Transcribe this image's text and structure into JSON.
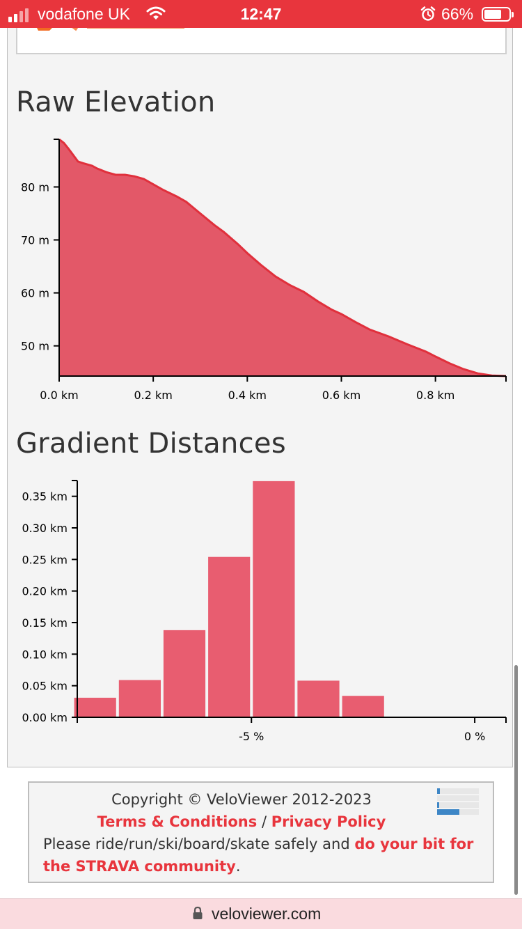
{
  "status_bar": {
    "carrier": "vodafone UK",
    "time": "12:47",
    "battery_percent": "66%",
    "battery_level": 0.66
  },
  "elevation": {
    "title": "Raw Elevation"
  },
  "gradient": {
    "title": "Gradient Distances"
  },
  "chart_data": [
    {
      "type": "area",
      "title": "Raw Elevation",
      "color": "#e35868",
      "line_color": "#e0303c",
      "x_unit": "km",
      "y_unit": "m",
      "xlim": [
        0,
        0.95
      ],
      "ylim": [
        44.3,
        89
      ],
      "x_ticks": [
        0.0,
        0.2,
        0.4,
        0.6,
        0.8
      ],
      "x_tick_labels": [
        "0.0 km",
        "0.2 km",
        "0.4 km",
        "0.6 km",
        "0.8 km"
      ],
      "y_ticks": [
        50,
        60,
        70,
        80
      ],
      "y_tick_labels": [
        "50 m",
        "60 m",
        "70 m",
        "80 m"
      ],
      "x": [
        0.0,
        0.01,
        0.02,
        0.03,
        0.04,
        0.05,
        0.07,
        0.08,
        0.1,
        0.12,
        0.14,
        0.16,
        0.18,
        0.2,
        0.22,
        0.25,
        0.27,
        0.3,
        0.33,
        0.35,
        0.38,
        0.4,
        0.43,
        0.46,
        0.49,
        0.52,
        0.55,
        0.58,
        0.6,
        0.63,
        0.66,
        0.7,
        0.74,
        0.78,
        0.8,
        0.83,
        0.86,
        0.89,
        0.92,
        0.95
      ],
      "y": [
        89.0,
        88.3,
        87.2,
        86.0,
        84.8,
        84.5,
        84.0,
        83.5,
        82.8,
        82.3,
        82.3,
        82.0,
        81.5,
        80.5,
        79.5,
        78.2,
        77.2,
        75.0,
        72.8,
        71.5,
        69.2,
        67.5,
        65.2,
        63.1,
        61.5,
        60.2,
        58.4,
        56.8,
        56.0,
        54.5,
        53.1,
        51.8,
        50.3,
        48.9,
        48.0,
        46.7,
        45.6,
        44.8,
        44.4,
        44.3
      ]
    },
    {
      "type": "bar",
      "title": "Gradient Distances",
      "color": "#e85d70",
      "x_unit": "%",
      "y_unit": "km",
      "xlim": [
        -8.9,
        0.7
      ],
      "ylim": [
        0,
        0.375
      ],
      "x_ticks": [
        -5,
        0
      ],
      "x_tick_labels": [
        "-5 %",
        "0 %"
      ],
      "y_ticks": [
        0.0,
        0.05,
        0.1,
        0.15,
        0.2,
        0.25,
        0.3,
        0.35
      ],
      "y_tick_labels": [
        "0.00 km",
        "0.05 km",
        "0.10 km",
        "0.15 km",
        "0.20 km",
        "0.25 km",
        "0.30 km",
        "0.35 km"
      ],
      "bin_width": 1,
      "bins": [
        {
          "from": -9,
          "to": -8,
          "value": 0.031
        },
        {
          "from": -8,
          "to": -7,
          "value": 0.059
        },
        {
          "from": -7,
          "to": -6,
          "value": 0.138
        },
        {
          "from": -6,
          "to": -5,
          "value": 0.254
        },
        {
          "from": -5,
          "to": -4,
          "value": 0.374
        },
        {
          "from": -4,
          "to": -3,
          "value": 0.058
        },
        {
          "from": -3,
          "to": -2,
          "value": 0.034
        }
      ]
    }
  ],
  "footer": {
    "copyright": "Copyright © VeloViewer 2012-2023",
    "terms_link": "Terms & Conditions",
    "separator": " / ",
    "privacy_link": "Privacy Policy",
    "safety_text": "Please ride/run/ski/board/skate safely and ",
    "strava_link": "do your bit for the STRAVA community",
    "safety_end": "."
  },
  "url_bar": {
    "url": "veloviewer.com"
  }
}
